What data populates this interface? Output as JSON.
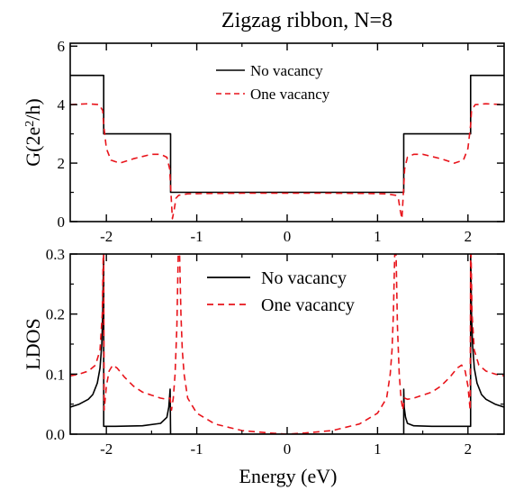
{
  "figure": {
    "title": "Zigzag ribbon, N=8",
    "xlabel": "Energy (eV)"
  },
  "colors": {
    "no_vacancy": "#000000",
    "one_vacancy": "#e8141b",
    "axis": "#000000"
  },
  "chart_data": [
    {
      "type": "line",
      "panel": "top",
      "title": "Zigzag ribbon, N=8",
      "ylabel": "G(2e²/h)",
      "ylabel_base": "G(2e",
      "ylabel_sup": "2",
      "ylabel_end": "/h)",
      "xlim": [
        -2.4,
        2.4
      ],
      "ylim": [
        0,
        6.1
      ],
      "xticks": [
        -2,
        -1,
        0,
        1,
        2
      ],
      "xtick_labels": [
        "-2",
        "-1",
        "0",
        "1",
        "2"
      ],
      "yticks": [
        0,
        2,
        4,
        6
      ],
      "ytick_labels": [
        "0",
        "2",
        "4",
        "6"
      ],
      "grid": false,
      "legend_position": "top-center",
      "series": [
        {
          "name": "No vacancy",
          "style": "solid",
          "x": [
            -2.4,
            -2.03,
            -2.03,
            -1.29,
            -1.29,
            1.29,
            1.29,
            2.03,
            2.03,
            2.4
          ],
          "y": [
            5,
            5,
            3,
            3,
            1,
            1,
            3,
            3,
            5,
            5
          ]
        },
        {
          "name": "One vacancy",
          "style": "dashed",
          "x": [
            -2.4,
            -2.2,
            -2.08,
            -2.04,
            -2.03,
            -2.0,
            -1.95,
            -1.85,
            -1.7,
            -1.5,
            -1.4,
            -1.33,
            -1.3,
            -1.29,
            -1.27,
            -1.25,
            -1.23,
            -1.2,
            -1.1,
            -0.9,
            -0.5,
            0,
            0.5,
            0.9,
            1.1,
            1.2,
            1.23,
            1.25,
            1.27,
            1.29,
            1.3,
            1.33,
            1.4,
            1.5,
            1.7,
            1.85,
            1.95,
            2.0,
            2.03,
            2.04,
            2.08,
            2.2,
            2.4
          ],
          "y": [
            4.0,
            4.03,
            4.0,
            3.8,
            3.3,
            2.5,
            2.1,
            2.0,
            2.15,
            2.3,
            2.3,
            2.2,
            1.8,
            1.2,
            0.1,
            0.4,
            0.8,
            0.9,
            0.95,
            0.96,
            0.97,
            0.97,
            0.97,
            0.96,
            0.95,
            0.9,
            0.8,
            0.4,
            0.1,
            1.2,
            1.8,
            2.2,
            2.3,
            2.3,
            2.15,
            2.0,
            2.1,
            2.5,
            3.3,
            3.8,
            4.0,
            4.03,
            4.0
          ]
        }
      ]
    },
    {
      "type": "line",
      "panel": "bottom",
      "ylabel": "LDOS",
      "xlabel": "Energy (eV)",
      "xlim": [
        -2.4,
        2.4
      ],
      "ylim": [
        0,
        0.3
      ],
      "xticks": [
        -2,
        -1,
        0,
        1,
        2
      ],
      "xtick_labels": [
        "-2",
        "-1",
        "0",
        "1",
        "2"
      ],
      "yticks": [
        0,
        0.1,
        0.2,
        0.3
      ],
      "ytick_labels": [
        "0.0",
        "0.1",
        "0.2",
        "0.3"
      ],
      "grid": false,
      "legend_position": "top-center",
      "series": [
        {
          "name": "No vacancy",
          "style": "solid",
          "x": [
            -2.4,
            -2.3,
            -2.2,
            -2.15,
            -2.1,
            -2.07,
            -2.05,
            -2.04,
            -2.035,
            -2.03,
            -2.03,
            -2.02,
            -1.9,
            -1.6,
            -1.4,
            -1.33,
            -1.31,
            -1.295,
            -1.29,
            -1.29,
            -1.28,
            -1.0,
            0,
            1.0,
            1.28,
            1.29,
            1.29,
            1.295,
            1.31,
            1.33,
            1.4,
            1.6,
            1.9,
            2.02,
            2.03,
            2.03,
            2.035,
            2.04,
            2.05,
            2.07,
            2.1,
            2.15,
            2.2,
            2.3,
            2.4
          ],
          "y": [
            0.045,
            0.05,
            0.058,
            0.066,
            0.085,
            0.11,
            0.15,
            0.2,
            0.26,
            0.3,
            0.013,
            0.013,
            0.013,
            0.014,
            0.018,
            0.028,
            0.045,
            0.075,
            0.0,
            0.0,
            0.0,
            0.0,
            0.0,
            0.0,
            0.0,
            0.0,
            0.075,
            0.045,
            0.028,
            0.018,
            0.014,
            0.013,
            0.013,
            0.013,
            0.013,
            0.3,
            0.26,
            0.2,
            0.15,
            0.11,
            0.085,
            0.066,
            0.058,
            0.05,
            0.045
          ]
        },
        {
          "name": "One vacancy",
          "style": "dashed",
          "x": [
            -2.4,
            -2.3,
            -2.2,
            -2.12,
            -2.07,
            -2.045,
            -2.035,
            -2.03,
            -2.025,
            -2.0,
            -1.97,
            -1.93,
            -1.88,
            -1.8,
            -1.7,
            -1.6,
            -1.5,
            -1.4,
            -1.33,
            -1.3,
            -1.295,
            -1.28,
            -1.26,
            -1.24,
            -1.22,
            -1.205,
            -1.19,
            -1.175,
            -1.16,
            -1.14,
            -1.1,
            -1.0,
            -0.8,
            -0.5,
            -0.2,
            0,
            0.2,
            0.5,
            0.8,
            1.0,
            1.1,
            1.14,
            1.16,
            1.175,
            1.19,
            1.205,
            1.22,
            1.24,
            1.26,
            1.28,
            1.295,
            1.3,
            1.33,
            1.4,
            1.5,
            1.6,
            1.7,
            1.8,
            1.88,
            1.93,
            1.97,
            2.0,
            2.025,
            2.03,
            2.035,
            2.045,
            2.07,
            2.12,
            2.2,
            2.3,
            2.4
          ],
          "y": [
            0.097,
            0.1,
            0.105,
            0.115,
            0.14,
            0.2,
            0.3,
            0.3,
            0.04,
            0.08,
            0.105,
            0.115,
            0.11,
            0.095,
            0.08,
            0.07,
            0.065,
            0.06,
            0.058,
            0.06,
            0.06,
            0.04,
            0.06,
            0.1,
            0.18,
            0.3,
            0.3,
            0.2,
            0.14,
            0.1,
            0.06,
            0.035,
            0.017,
            0.006,
            0.002,
            0.0,
            0.002,
            0.006,
            0.017,
            0.035,
            0.06,
            0.1,
            0.14,
            0.2,
            0.3,
            0.3,
            0.18,
            0.1,
            0.06,
            0.04,
            0.06,
            0.06,
            0.058,
            0.06,
            0.065,
            0.07,
            0.08,
            0.095,
            0.11,
            0.115,
            0.105,
            0.08,
            0.04,
            0.3,
            0.3,
            0.2,
            0.14,
            0.115,
            0.105,
            0.1,
            0.097
          ]
        }
      ]
    }
  ]
}
